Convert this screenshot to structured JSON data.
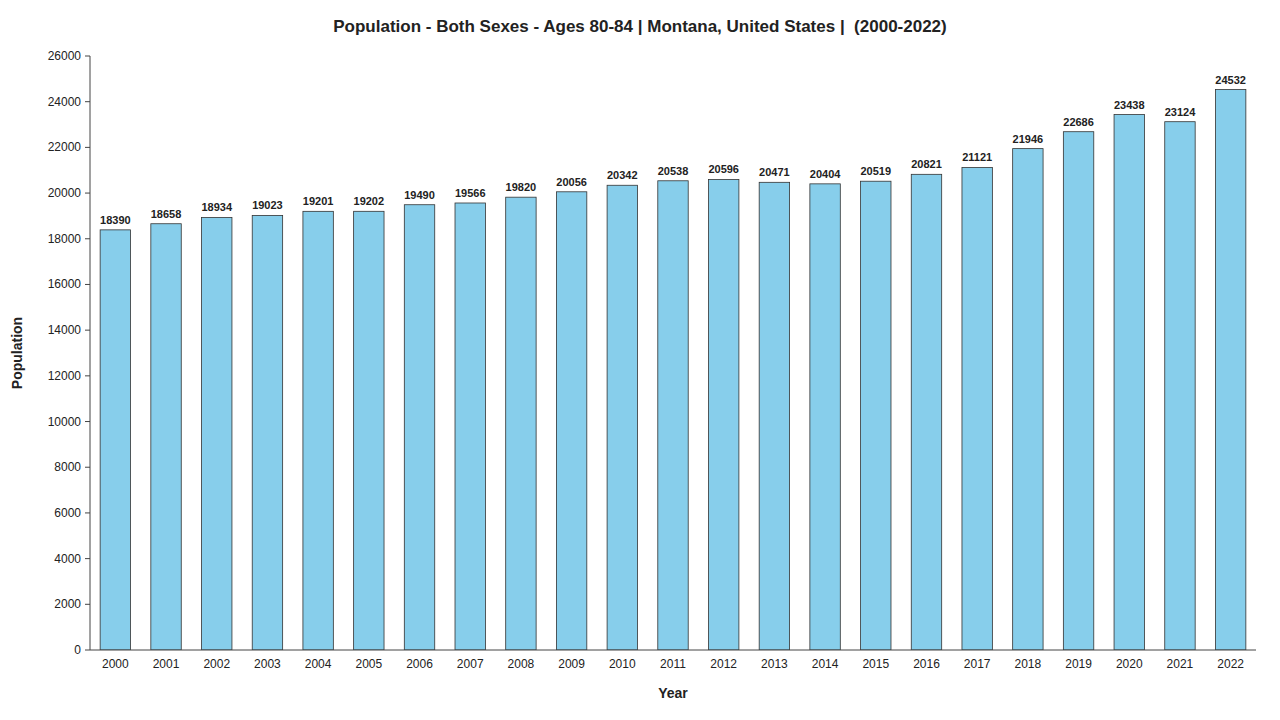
{
  "chart_data": {
    "type": "bar",
    "title": "Population - Both Sexes - Ages 80-84 | Montana, United States |  (2000-2022)",
    "xlabel": "Year",
    "ylabel": "Population",
    "categories": [
      "2000",
      "2001",
      "2002",
      "2003",
      "2004",
      "2005",
      "2006",
      "2007",
      "2008",
      "2009",
      "2010",
      "2011",
      "2012",
      "2013",
      "2014",
      "2015",
      "2016",
      "2017",
      "2018",
      "2019",
      "2020",
      "2021",
      "2022"
    ],
    "values": [
      18390,
      18658,
      18934,
      19023,
      19201,
      19202,
      19490,
      19566,
      19820,
      20056,
      20342,
      20538,
      20596,
      20471,
      20404,
      20519,
      20821,
      21121,
      21946,
      22686,
      23438,
      23124,
      24532
    ],
    "color": "#87CEEB",
    "ylim": [
      0,
      26000
    ],
    "yticks": [
      0,
      2000,
      4000,
      6000,
      8000,
      10000,
      12000,
      14000,
      16000,
      18000,
      20000,
      22000,
      24000,
      26000
    ],
    "grid": false,
    "data_labels": true
  }
}
